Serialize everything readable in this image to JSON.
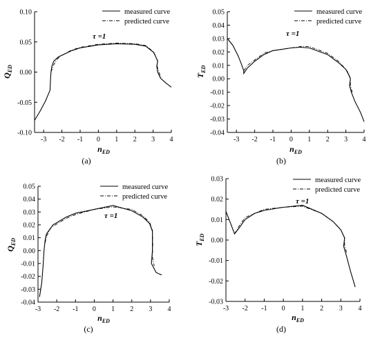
{
  "chart_data": [
    {
      "panel_label": "(a)",
      "type": "line",
      "ylabel": "Q",
      "ylabel_sub": "ED",
      "xlabel": "n",
      "xlabel_sub": "ED",
      "annotation": "τ =1",
      "legend_position": "top-right",
      "xlim": [
        -3.5,
        4
      ],
      "ylim": [
        -0.1,
        0.1
      ],
      "xticks": [
        -3,
        -2,
        -1,
        0,
        1,
        2,
        3,
        4
      ],
      "yticks": [
        -0.1,
        -0.05,
        0.0,
        0.05,
        0.1
      ],
      "ytick_labels": [
        "-0.10",
        "-0.05",
        "0.00",
        "0.05",
        "0.10"
      ],
      "series": [
        {
          "name": "measured curve",
          "style": "solid",
          "points": [
            [
              -3.5,
              -0.08
            ],
            [
              -3.2,
              -0.065
            ],
            [
              -2.9,
              -0.048
            ],
            [
              -2.65,
              -0.03
            ],
            [
              -2.62,
              -0.01
            ],
            [
              -2.6,
              0.0
            ],
            [
              -2.55,
              0.01
            ],
            [
              -2.45,
              0.018
            ],
            [
              -2.2,
              0.025
            ],
            [
              -1.5,
              0.035
            ],
            [
              -1,
              0.04
            ],
            [
              0,
              0.045
            ],
            [
              1,
              0.047
            ],
            [
              2,
              0.046
            ],
            [
              2.6,
              0.043
            ],
            [
              3.05,
              0.032
            ],
            [
              3.25,
              0.018
            ],
            [
              3.2,
              0.01
            ],
            [
              3.25,
              0.0
            ],
            [
              3.4,
              -0.01
            ],
            [
              3.7,
              -0.018
            ],
            [
              4,
              -0.025
            ]
          ]
        },
        {
          "name": "predicted curve",
          "style": "dashdot",
          "points": [
            [
              -2.6,
              0.0
            ],
            [
              -2.5,
              0.008
            ],
            [
              -2.45,
              0.012
            ],
            [
              -2.3,
              0.02
            ],
            [
              -2.1,
              0.026
            ],
            [
              -1.5,
              0.036
            ],
            [
              -1,
              0.041
            ],
            [
              0,
              0.046
            ],
            [
              1,
              0.048
            ],
            [
              2,
              0.047
            ],
            [
              2.6,
              0.044
            ],
            [
              3.0,
              0.034
            ],
            [
              3.25,
              0.019
            ],
            [
              3.22,
              0.01
            ],
            [
              3.3,
              0.001
            ],
            [
              3.45,
              -0.01
            ]
          ]
        }
      ]
    },
    {
      "panel_label": "(b)",
      "type": "line",
      "ylabel": "T",
      "ylabel_sub": "ED",
      "xlabel": "n",
      "xlabel_sub": "ED",
      "annotation": "τ =1",
      "legend_position": "top-right",
      "xlim": [
        -3.5,
        4
      ],
      "ylim": [
        -0.04,
        0.05
      ],
      "xticks": [
        -3,
        -2,
        -1,
        0,
        1,
        2,
        3,
        4
      ],
      "yticks": [
        -0.04,
        -0.03,
        -0.02,
        -0.01,
        0.0,
        0.01,
        0.02,
        0.03,
        0.04,
        0.05
      ],
      "ytick_labels": [
        "-0.04",
        "-0.03",
        "-0.02",
        "-0.01",
        "0.00",
        "0.01",
        "0.02",
        "0.03",
        "0.04",
        "0.05"
      ],
      "series": [
        {
          "name": "measured curve",
          "style": "solid",
          "points": [
            [
              -3.5,
              0.03
            ],
            [
              -3.2,
              0.025
            ],
            [
              -2.9,
              0.017
            ],
            [
              -2.7,
              0.01
            ],
            [
              -2.6,
              0.006
            ],
            [
              -2.6,
              0.004
            ],
            [
              -2.4,
              0.008
            ],
            [
              -2.0,
              0.013
            ],
            [
              -1.5,
              0.018
            ],
            [
              -1,
              0.021
            ],
            [
              0,
              0.023
            ],
            [
              0.5,
              0.0235
            ],
            [
              1,
              0.023
            ],
            [
              2,
              0.018
            ],
            [
              2.6,
              0.012
            ],
            [
              3.0,
              0.007
            ],
            [
              3.15,
              0.003
            ],
            [
              3.25,
              0.0
            ],
            [
              3.2,
              -0.005
            ],
            [
              3.3,
              -0.01
            ],
            [
              3.5,
              -0.017
            ],
            [
              3.8,
              -0.025
            ],
            [
              4,
              -0.032
            ]
          ]
        },
        {
          "name": "predicted curve",
          "style": "dashdot",
          "points": [
            [
              -2.6,
              0.006
            ],
            [
              -2.4,
              0.01
            ],
            [
              -2.0,
              0.014
            ],
            [
              -1.5,
              0.019
            ],
            [
              -1,
              0.021
            ],
            [
              0,
              0.023
            ],
            [
              0.5,
              0.024
            ],
            [
              1,
              0.024
            ],
            [
              2,
              0.019
            ],
            [
              2.6,
              0.013
            ],
            [
              3.0,
              0.007
            ],
            [
              3.15,
              0.004
            ],
            [
              3.25,
              0.0
            ],
            [
              3.25,
              -0.005
            ],
            [
              3.35,
              -0.01
            ]
          ]
        }
      ]
    },
    {
      "panel_label": "(c)",
      "type": "line",
      "ylabel": "Q",
      "ylabel_sub": "ED",
      "xlabel": "n",
      "xlabel_sub": "ED",
      "annotation": "τ =1",
      "legend_position": "top-right",
      "xlim": [
        -3,
        4
      ],
      "ylim": [
        -0.04,
        0.05
      ],
      "xticks": [
        -3,
        -2,
        -1,
        0,
        1,
        2,
        3,
        4
      ],
      "yticks": [
        -0.04,
        -0.03,
        -0.02,
        -0.01,
        0.0,
        0.01,
        0.02,
        0.03,
        0.04,
        0.05
      ],
      "ytick_labels": [
        "-0.04",
        "-0.03",
        "-0.02",
        "-0.01",
        "0.00",
        "0.01",
        "0.02",
        "0.03",
        "0.04",
        "0.05"
      ],
      "series": [
        {
          "name": "measured curve",
          "style": "solid",
          "points": [
            [
              -2.92,
              -0.036
            ],
            [
              -2.8,
              -0.025
            ],
            [
              -2.72,
              -0.01
            ],
            [
              -2.68,
              0.0
            ],
            [
              -2.62,
              0.008
            ],
            [
              -2.55,
              0.013
            ],
            [
              -2.2,
              0.02
            ],
            [
              -1.5,
              0.026
            ],
            [
              -1,
              0.029
            ],
            [
              0,
              0.032
            ],
            [
              1,
              0.035
            ],
            [
              2,
              0.031
            ],
            [
              2.6,
              0.026
            ],
            [
              2.95,
              0.021
            ],
            [
              3.1,
              0.015
            ],
            [
              3.1,
              0.0
            ],
            [
              3.05,
              -0.01
            ],
            [
              3.3,
              -0.017
            ],
            [
              3.6,
              -0.019
            ]
          ]
        },
        {
          "name": "predicted curve",
          "style": "dashdot",
          "points": [
            [
              -2.62,
              0.006
            ],
            [
              -2.55,
              0.011
            ],
            [
              -2.3,
              0.018
            ],
            [
              -1.5,
              0.025
            ],
            [
              -1,
              0.028
            ],
            [
              0,
              0.032
            ],
            [
              1,
              0.034
            ],
            [
              2,
              0.032
            ],
            [
              2.6,
              0.027
            ],
            [
              2.95,
              0.022
            ],
            [
              3.1,
              0.016
            ],
            [
              3.12,
              0.005
            ],
            [
              3.1,
              -0.005
            ],
            [
              3.2,
              -0.012
            ]
          ]
        }
      ]
    },
    {
      "panel_label": "(d)",
      "type": "line",
      "ylabel": "T",
      "ylabel_sub": "ED",
      "xlabel": "n",
      "xlabel_sub": "ED",
      "annotation": "τ =1",
      "legend_position": "top-right",
      "xlim": [
        -3,
        4
      ],
      "ylim": [
        -0.03,
        0.03
      ],
      "xticks": [
        -3,
        -2,
        -1,
        0,
        1,
        2,
        3,
        4
      ],
      "yticks": [
        -0.03,
        -0.02,
        -0.01,
        0.0,
        0.01,
        0.02,
        0.03
      ],
      "ytick_labels": [
        "-0.03",
        "-0.02",
        "-0.01",
        "0.00",
        "0.01",
        "0.02",
        "0.03"
      ],
      "series": [
        {
          "name": "measured curve",
          "style": "solid",
          "points": [
            [
              -3.0,
              0.014
            ],
            [
              -2.75,
              0.008
            ],
            [
              -2.55,
              0.003
            ],
            [
              -2.3,
              0.006
            ],
            [
              -2.0,
              0.01
            ],
            [
              -1.5,
              0.013
            ],
            [
              -1,
              0.0145
            ],
            [
              0,
              0.016
            ],
            [
              1,
              0.017
            ],
            [
              2,
              0.013
            ],
            [
              2.6,
              0.009
            ],
            [
              3.0,
              0.005
            ],
            [
              3.2,
              0.001
            ],
            [
              3.15,
              -0.003
            ],
            [
              3.3,
              -0.008
            ],
            [
              3.5,
              -0.015
            ],
            [
              3.75,
              -0.023
            ]
          ]
        },
        {
          "name": "predicted curve",
          "style": "dashdot",
          "points": [
            [
              -2.55,
              0.003
            ],
            [
              -2.3,
              0.007
            ],
            [
              -2.0,
              0.011
            ],
            [
              -1.5,
              0.013
            ],
            [
              -1,
              0.015
            ],
            [
              0,
              0.016
            ],
            [
              1,
              0.0165
            ],
            [
              2,
              0.013
            ],
            [
              2.6,
              0.009
            ],
            [
              3.0,
              0.005
            ],
            [
              3.2,
              0.001
            ],
            [
              3.2,
              -0.003
            ],
            [
              3.3,
              -0.006
            ]
          ]
        }
      ]
    }
  ]
}
